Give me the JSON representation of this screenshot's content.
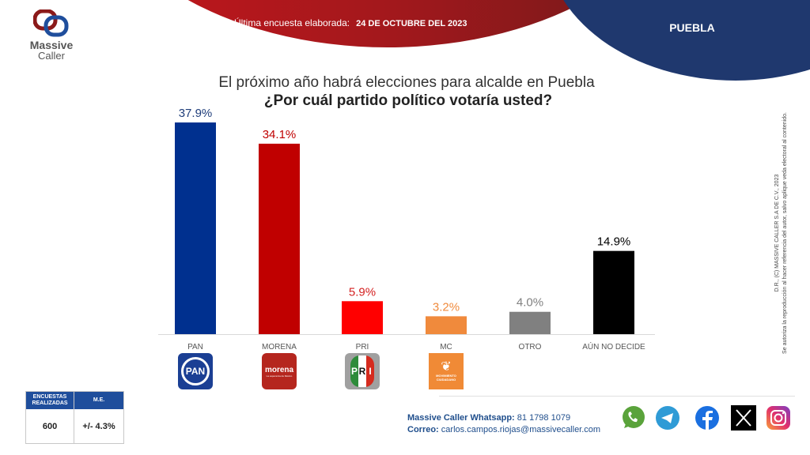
{
  "header": {
    "brand_line1": "Massive",
    "brand_line2": "Caller",
    "survey_label": "Última encuesta elaborada:",
    "survey_date": "24 DE OCTUBRE DEL 2023",
    "state": "PUEBLA"
  },
  "title": {
    "line1": "El próximo año habrá elecciones para alcalde en Puebla",
    "line2": "¿Por cuál partido político votaría usted?"
  },
  "chart_data": {
    "type": "bar",
    "title": "¿Por cuál partido político votaría usted?",
    "xlabel": "",
    "ylabel": "",
    "ylim": [
      0,
      40
    ],
    "grid": false,
    "categories": [
      "PAN",
      "MORENA",
      "PRI",
      "MC",
      "OTRO",
      "AÚN NO DECIDE"
    ],
    "values": [
      37.9,
      34.1,
      5.9,
      3.2,
      4.0,
      14.9
    ],
    "labels": [
      "37.9%",
      "34.1%",
      "5.9%",
      "3.2%",
      "4.0%",
      "14.9%"
    ],
    "bar_colors": [
      "#00308f",
      "#c00000",
      "#ff0000",
      "#f08a3c",
      "#808080",
      "#000000"
    ],
    "label_colors": [
      "#1f3d7a",
      "#c00000",
      "#d42020",
      "#f08a3c",
      "#808080",
      "#000000"
    ]
  },
  "party_logos": {
    "pan": "PAN",
    "morena": "morena",
    "morena_sub": "La esperanza de México",
    "pri_p": "P",
    "pri_r": "R",
    "pri_i": "I",
    "mc_line1": "MOVIMIENTO",
    "mc_line2": "CIUDADANO"
  },
  "stats": {
    "header_surveys": "ENCUESTAS REALIZADAS",
    "header_me": "M.E.",
    "surveys": "600",
    "me": "+/- 4.3%"
  },
  "contact": {
    "whatsapp_label": "Massive Caller Whatsapp:",
    "whatsapp_number": "81 1798 1079",
    "email_label": "Correo:",
    "email": "carlos.campos.riojas@massivecaller.com"
  },
  "social": [
    "whatsapp-icon",
    "telegram-icon",
    "facebook-icon",
    "x-icon",
    "instagram-icon"
  ],
  "legal": {
    "line1": "D.R., (C) MASSIVE CALLER S.A DE C.V., 2023",
    "line2": "Se autoriza la reproducción al hacer referencia del autor, salvo aplique veda electoral al contenido."
  }
}
